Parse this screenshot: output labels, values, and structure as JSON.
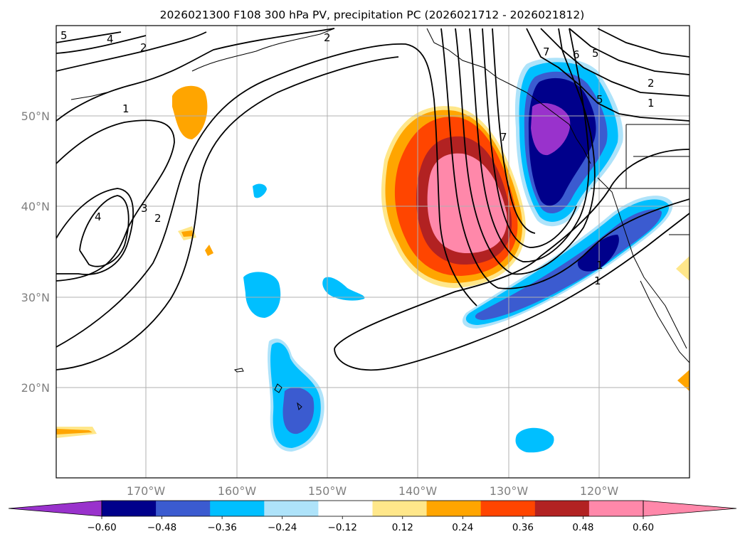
{
  "title": "2026021300 F108 300 hPa PV, precipitation PC (2026021712 - 2026021812)",
  "map": {
    "lat_labels": [
      "50°N",
      "40°N",
      "30°N",
      "20°N"
    ],
    "lon_labels": [
      "170°W",
      "160°W",
      "150°W",
      "140°W",
      "130°W",
      "120°W"
    ],
    "lon_range": [
      -180,
      -110
    ],
    "lat_range": [
      10,
      60
    ]
  },
  "contour_labels": [
    "5",
    "4",
    "2",
    "2",
    "1",
    "4",
    "3",
    "2",
    "7",
    "7",
    "6",
    "5",
    "2",
    "1",
    "5",
    "1",
    "1"
  ],
  "colorbar": {
    "ticks": [
      "-0.60",
      "-0.48",
      "-0.36",
      "-0.24",
      "-0.12",
      "0.12",
      "0.24",
      "0.36",
      "0.48",
      "0.60"
    ],
    "colors": [
      "#9932cc",
      "#00008b",
      "#3b5bd0",
      "#00bfff",
      "#aee3fa",
      "#ffffff",
      "#ffe78a",
      "#ffa500",
      "#ff4500",
      "#b22222",
      "#ff88aa",
      "#ff88aa"
    ]
  }
}
